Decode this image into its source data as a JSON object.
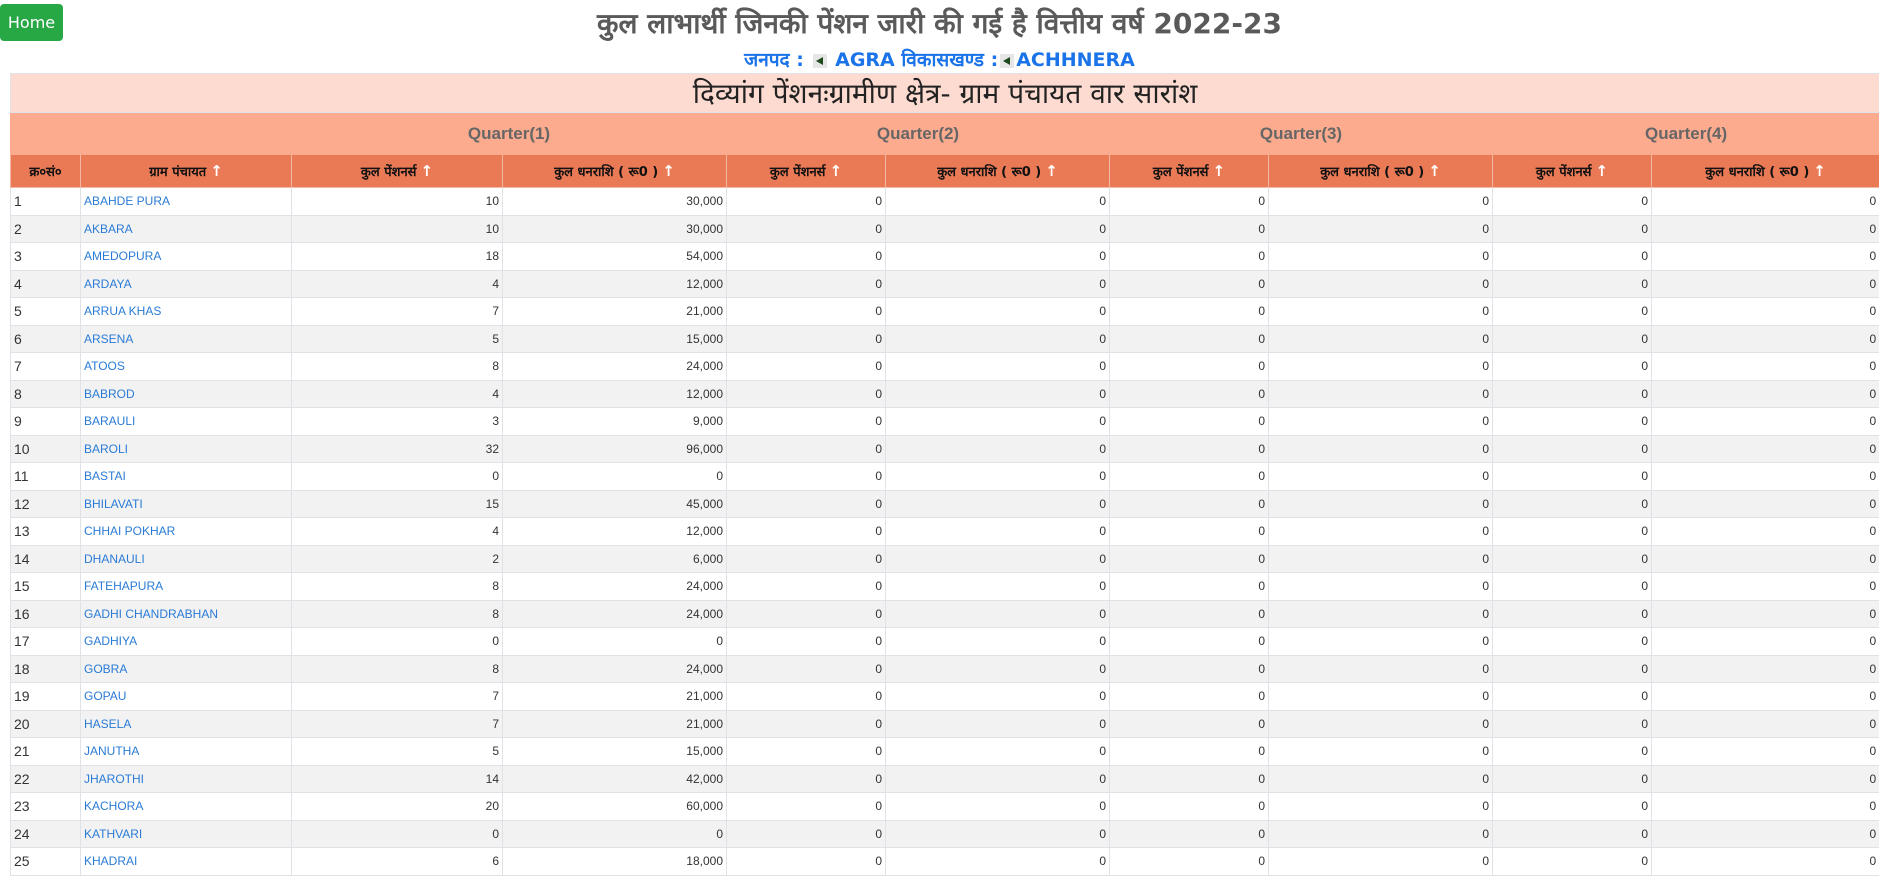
{
  "home_label": "Home",
  "title": "कुल लाभार्थी जिनकी पेंशन जारी की गई है वित्तीय वर्ष 2022-23",
  "subtitle": {
    "district_label": "जनपद :",
    "district": "AGRA",
    "block_label": "विकासखण्ड :",
    "block": "ACHHNERA"
  },
  "table": {
    "caption": "दिव्यांग पेंशनःग्रामीण क्षेत्र- ग्राम पंचायत वार सारांश",
    "quarters": [
      "Quarter(1)",
      "Quarter(2)",
      "Quarter(3)",
      "Quarter(4)"
    ],
    "headers": [
      "क्र०सं०",
      "ग्राम पंचायत",
      "कुल पेंशनर्स",
      "कुल धनराशि ( रू0 )",
      "कुल पेंशनर्स",
      "कुल धनराशि ( रू0 )",
      "कुल पेंशनर्स",
      "कुल धनराशि ( रू0 )",
      "कुल पेंशनर्स",
      "कुल धनराशि ( रू0 )"
    ],
    "rows": [
      [
        "1",
        "ABAHDE PURA",
        "10",
        "30,000",
        "0",
        "0",
        "0",
        "0",
        "0",
        "0"
      ],
      [
        "2",
        "AKBARA",
        "10",
        "30,000",
        "0",
        "0",
        "0",
        "0",
        "0",
        "0"
      ],
      [
        "3",
        "AMEDOPURA",
        "18",
        "54,000",
        "0",
        "0",
        "0",
        "0",
        "0",
        "0"
      ],
      [
        "4",
        "ARDAYA",
        "4",
        "12,000",
        "0",
        "0",
        "0",
        "0",
        "0",
        "0"
      ],
      [
        "5",
        "ARRUA KHAS",
        "7",
        "21,000",
        "0",
        "0",
        "0",
        "0",
        "0",
        "0"
      ],
      [
        "6",
        "ARSENA",
        "5",
        "15,000",
        "0",
        "0",
        "0",
        "0",
        "0",
        "0"
      ],
      [
        "7",
        "ATOOS",
        "8",
        "24,000",
        "0",
        "0",
        "0",
        "0",
        "0",
        "0"
      ],
      [
        "8",
        "BABROD",
        "4",
        "12,000",
        "0",
        "0",
        "0",
        "0",
        "0",
        "0"
      ],
      [
        "9",
        "BARAULI",
        "3",
        "9,000",
        "0",
        "0",
        "0",
        "0",
        "0",
        "0"
      ],
      [
        "10",
        "BAROLI",
        "32",
        "96,000",
        "0",
        "0",
        "0",
        "0",
        "0",
        "0"
      ],
      [
        "11",
        "BASTAI",
        "0",
        "0",
        "0",
        "0",
        "0",
        "0",
        "0",
        "0"
      ],
      [
        "12",
        "BHILAVATI",
        "15",
        "45,000",
        "0",
        "0",
        "0",
        "0",
        "0",
        "0"
      ],
      [
        "13",
        "CHHAI POKHAR",
        "4",
        "12,000",
        "0",
        "0",
        "0",
        "0",
        "0",
        "0"
      ],
      [
        "14",
        "DHANAULI",
        "2",
        "6,000",
        "0",
        "0",
        "0",
        "0",
        "0",
        "0"
      ],
      [
        "15",
        "FATEHAPURA",
        "8",
        "24,000",
        "0",
        "0",
        "0",
        "0",
        "0",
        "0"
      ],
      [
        "16",
        "GADHI CHANDRABHAN",
        "8",
        "24,000",
        "0",
        "0",
        "0",
        "0",
        "0",
        "0"
      ],
      [
        "17",
        "GADHIYA",
        "0",
        "0",
        "0",
        "0",
        "0",
        "0",
        "0",
        "0"
      ],
      [
        "18",
        "GOBRA",
        "8",
        "24,000",
        "0",
        "0",
        "0",
        "0",
        "0",
        "0"
      ],
      [
        "19",
        "GOPAU",
        "7",
        "21,000",
        "0",
        "0",
        "0",
        "0",
        "0",
        "0"
      ],
      [
        "20",
        "HASELA",
        "7",
        "21,000",
        "0",
        "0",
        "0",
        "0",
        "0",
        "0"
      ],
      [
        "21",
        "JANUTHA",
        "5",
        "15,000",
        "0",
        "0",
        "0",
        "0",
        "0",
        "0"
      ],
      [
        "22",
        "JHAROTHI",
        "14",
        "42,000",
        "0",
        "0",
        "0",
        "0",
        "0",
        "0"
      ],
      [
        "23",
        "KACHORA",
        "20",
        "60,000",
        "0",
        "0",
        "0",
        "0",
        "0",
        "0"
      ],
      [
        "24",
        "KATHVARI",
        "0",
        "0",
        "0",
        "0",
        "0",
        "0",
        "0",
        "0"
      ],
      [
        "25",
        "KHADRAI",
        "6",
        "18,000",
        "0",
        "0",
        "0",
        "0",
        "0",
        "0"
      ]
    ]
  },
  "colors": {
    "home": "#28a745",
    "band": "#fddbd0",
    "quarter_row": "#fcab8e",
    "header_row": "#e97a55",
    "link": "#2a7bd6",
    "subtitle": "#1a73e8"
  }
}
